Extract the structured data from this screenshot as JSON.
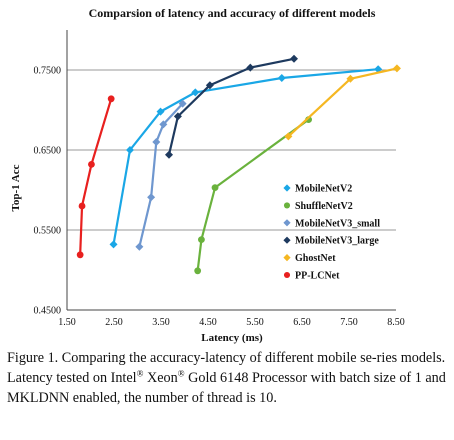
{
  "chart_data": {
    "type": "line",
    "title": "Comparsion of latency and accuracy of different models",
    "xlabel": "Latency (ms)",
    "ylabel": "Top-1 Acc",
    "xlim": [
      1.5,
      8.5
    ],
    "ylim": [
      0.45,
      0.8
    ],
    "xticks": [
      "1.50",
      "2.50",
      "3.50",
      "4.50",
      "5.50",
      "6.50",
      "7.50",
      "8.50"
    ],
    "xtick_values": [
      1.5,
      2.5,
      3.5,
      4.5,
      5.5,
      6.5,
      7.5,
      8.5
    ],
    "yticks": [
      "0.4500",
      "0.5500",
      "0.6500",
      "0.7500"
    ],
    "ytick_values": [
      0.45,
      0.55,
      0.65,
      0.75
    ],
    "grid": "horizontal",
    "legend_position": "right",
    "series": [
      {
        "name": "MobileNetV2",
        "color": "#1aa7e6",
        "marker": "diamond",
        "x": [
          2.49,
          2.84,
          3.49,
          4.23,
          6.07,
          8.12
        ],
        "y": [
          0.532,
          0.65,
          0.698,
          0.722,
          0.74,
          0.751
        ]
      },
      {
        "name": "ShuffleNetV2",
        "color": "#6ab23d",
        "marker": "circle",
        "x": [
          4.28,
          4.36,
          4.65,
          6.64
        ],
        "y": [
          0.499,
          0.538,
          0.603,
          0.688
        ]
      },
      {
        "name": "MobileNetV3_small",
        "color": "#6f97cf",
        "marker": "diamond",
        "x": [
          3.04,
          3.29,
          3.4,
          3.55,
          3.96
        ],
        "y": [
          0.529,
          0.591,
          0.66,
          0.682,
          0.708
        ]
      },
      {
        "name": "MobileNetV3_large",
        "color": "#1e3a5f",
        "marker": "diamond",
        "x": [
          3.67,
          3.86,
          4.54,
          5.4,
          6.33
        ],
        "y": [
          0.644,
          0.692,
          0.731,
          0.753,
          0.764
        ]
      },
      {
        "name": "GhostNet",
        "color": "#f5b722",
        "marker": "diamond",
        "x": [
          6.21,
          7.53,
          8.52
        ],
        "y": [
          0.667,
          0.739,
          0.752
        ]
      },
      {
        "name": "PP-LCNet",
        "color": "#e8201f",
        "marker": "circle",
        "x": [
          1.78,
          1.82,
          2.02,
          2.44
        ],
        "y": [
          0.519,
          0.58,
          0.632,
          0.714
        ]
      }
    ]
  },
  "caption": {
    "p1": "Figure 1. Comparing the accuracy-latency of different mobile se-ries models. Latency tested on Intel",
    "reg1": "®",
    "p2": " Xeon",
    "reg2": "®",
    "p3": " Gold 6148 Processor with batch size of 1 and MKLDNN enabled, the number of thread is 10."
  }
}
